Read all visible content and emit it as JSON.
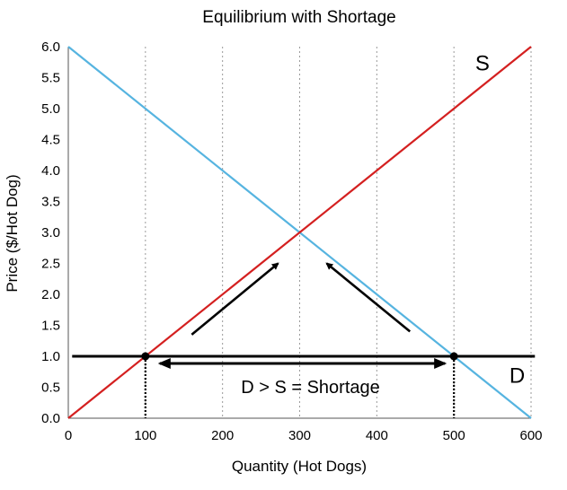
{
  "chart_data": {
    "type": "line",
    "title": "Equilibrium with Shortage",
    "xlabel": "Quantity (Hot Dogs)",
    "ylabel": "Price ($/Hot Dog)",
    "xlim": [
      0,
      600
    ],
    "ylim": [
      0,
      6
    ],
    "x_ticks": [
      0,
      100,
      200,
      300,
      400,
      500,
      600
    ],
    "y_ticks": [
      "0.0",
      "0.5",
      "1.0",
      "1.5",
      "2.0",
      "2.5",
      "3.0",
      "3.5",
      "4.0",
      "4.5",
      "5.0",
      "5.5",
      "6.0"
    ],
    "grid": "vertical dotted",
    "series": [
      {
        "name": "S",
        "color": "#d42020",
        "x": [
          0,
          600
        ],
        "y": [
          0,
          6
        ]
      },
      {
        "name": "D",
        "color": "#56b4e0",
        "x": [
          0,
          600
        ],
        "y": [
          6,
          0
        ]
      }
    ],
    "price_line": {
      "y": 1.0,
      "x": [
        5,
        605
      ],
      "color": "#000000"
    },
    "points": [
      {
        "name": "supply-at-price",
        "x": 100,
        "y": 1.0
      },
      {
        "name": "demand-at-price",
        "x": 500,
        "y": 1.0
      }
    ],
    "shortage": {
      "label": "D > S = Shortage",
      "from": 100,
      "to": 500,
      "price": 1.0
    },
    "adjustment_arrows": [
      {
        "from": [
          160,
          1.35
        ],
        "to": [
          272,
          2.5
        ]
      },
      {
        "from": [
          443,
          1.4
        ],
        "to": [
          335,
          2.5
        ]
      }
    ],
    "curve_labels": [
      {
        "text": "S",
        "x": 537,
        "y": 5.75
      },
      {
        "text": "D",
        "x": 582,
        "y": 0.7
      }
    ]
  }
}
